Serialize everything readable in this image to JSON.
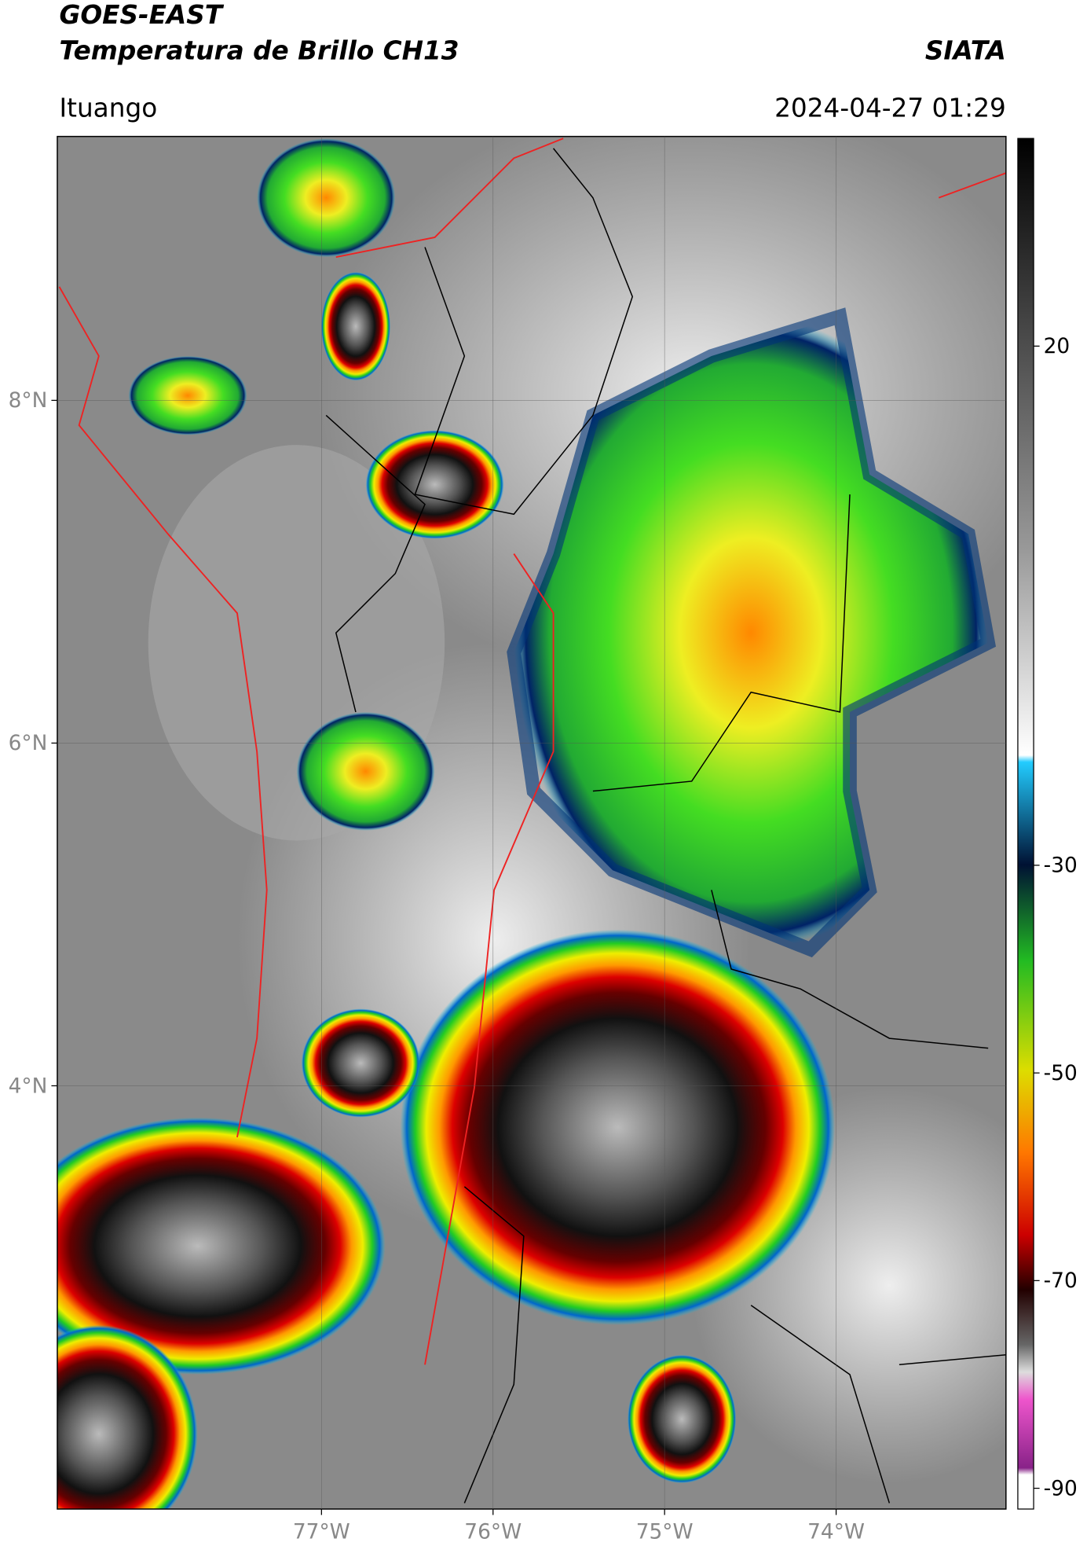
{
  "header": {
    "title": "GOES-EAST",
    "subtitle": "Temperatura de Brillo CH13",
    "org": "SIATA",
    "location": "Ituango",
    "datetime": "2024-04-27 01:29"
  },
  "map": {
    "lat_range": [
      1.53,
      9.54
    ],
    "lon_range": [
      -78.54,
      -73.01
    ],
    "lat_ticks": [
      {
        "value": 8,
        "label": "8°N"
      },
      {
        "value": 6,
        "label": "6°N"
      },
      {
        "value": 4,
        "label": "4°N"
      }
    ],
    "lon_ticks": [
      {
        "value": -77,
        "label": "77°W"
      },
      {
        "value": -76,
        "label": "76°W"
      },
      {
        "value": -75,
        "label": "75°W"
      },
      {
        "value": -74,
        "label": "74°W"
      }
    ]
  },
  "colorbar": {
    "range": [
      -92,
      40
    ],
    "ticks": [
      20,
      -30,
      -50,
      -70,
      -90
    ]
  }
}
